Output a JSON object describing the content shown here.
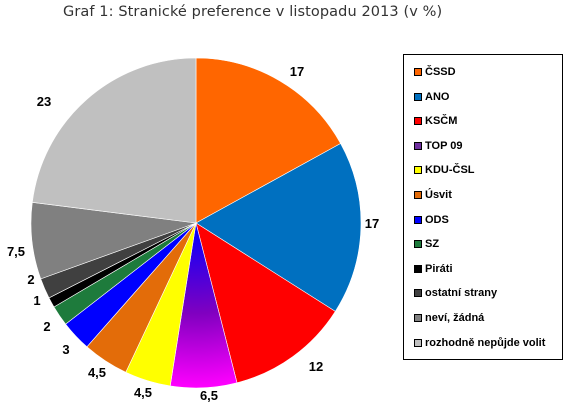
{
  "chart_data": {
    "type": "pie",
    "title": "Graf 1: Stranické preference v listopadu 2013 (v %)",
    "slices": [
      {
        "label": "ČSSD",
        "value": 17,
        "value_label": "17",
        "color": "#ff6600"
      },
      {
        "label": "ANO",
        "value": 17,
        "value_label": "17",
        "color": "#0070c0"
      },
      {
        "label": "KSČM",
        "value": 12,
        "value_label": "12",
        "color": "#ff0000"
      },
      {
        "label": "TOP 09",
        "value": 6.5,
        "value_label": "6,5",
        "color": "#7030a0"
      },
      {
        "label": "KDU-ČSL",
        "value": 4.5,
        "value_label": "4,5",
        "color": "#ffff00"
      },
      {
        "label": "Úsvit",
        "value": 4.5,
        "value_label": "4,5",
        "color": "#e36c09"
      },
      {
        "label": "ODS",
        "value": 3,
        "value_label": "3",
        "color": "#0000ff"
      },
      {
        "label": "SZ",
        "value": 2,
        "value_label": "2",
        "color": "#1e7b3c"
      },
      {
        "label": "Piráti",
        "value": 1,
        "value_label": "1",
        "color": "#000000"
      },
      {
        "label": "ostatní strany",
        "value": 2,
        "value_label": "2",
        "color": "#404040"
      },
      {
        "label": "neví, žádná",
        "value": 7.5,
        "value_label": "7,5",
        "color": "#808080"
      },
      {
        "label": "rozhodně nepůjde volit",
        "value": 23,
        "value_label": "23",
        "color": "#c0c0c0"
      }
    ],
    "legend_position": "right"
  }
}
